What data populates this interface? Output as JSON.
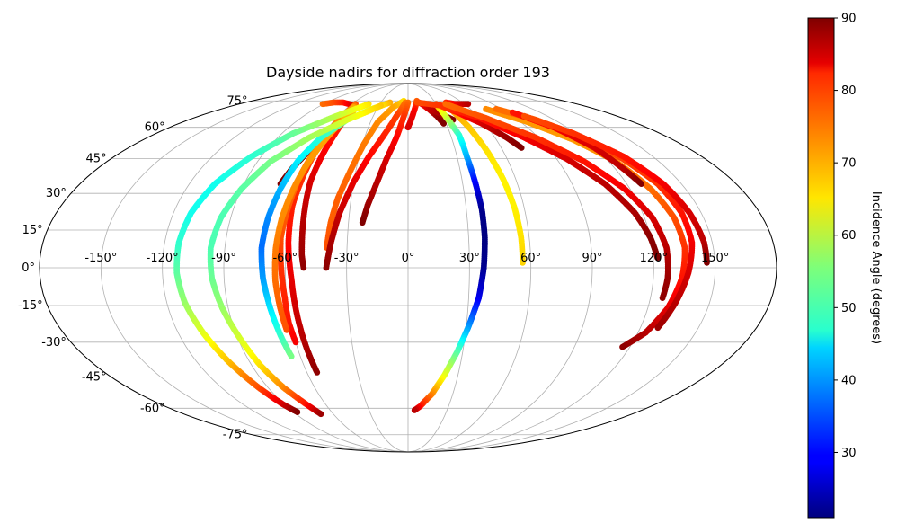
{
  "chart_data": {
    "type": "scatter",
    "projection": "mollweide",
    "title": "Dayside nadirs for diffraction order 193",
    "xlabel": "",
    "ylabel": "",
    "xlim": [
      -180,
      180
    ],
    "ylim": [
      -90,
      90
    ],
    "grid": true,
    "x_ticks": [
      -150,
      -120,
      -90,
      -60,
      -30,
      0,
      30,
      60,
      90,
      120,
      150
    ],
    "x_tick_labels": [
      "-150°",
      "-120°",
      "-90°",
      "-60°",
      "-30°",
      "0°",
      "30°",
      "60°",
      "90°",
      "120°",
      "150°"
    ],
    "y_ticks": [
      -75,
      -60,
      -45,
      -30,
      -15,
      0,
      15,
      30,
      45,
      60,
      75
    ],
    "y_tick_labels": [
      "-75°",
      "-60°",
      "-45°",
      "-30°",
      "-15°",
      "0°",
      "15°",
      "30°",
      "45°",
      "60°",
      "75°"
    ],
    "colorbar": {
      "label": "Incidence Angle (degrees)",
      "colormap": "jet",
      "range": [
        21,
        90
      ],
      "ticks": [
        30,
        40,
        50,
        60,
        70,
        80,
        90
      ],
      "tick_labels": [
        "30",
        "40",
        "50",
        "60",
        "70",
        "80",
        "90"
      ]
    },
    "tracks": [
      {
        "points": [
          [
            -91,
            73,
            74
          ],
          [
            -82,
            74,
            76
          ],
          [
            -72,
            74,
            79
          ],
          [
            -63,
            73,
            82
          ],
          [
            -57,
            72,
            84
          ],
          [
            -53,
            68,
            86
          ],
          [
            -55,
            62,
            88
          ],
          [
            -58,
            55,
            89
          ],
          [
            -63,
            48,
            90
          ],
          [
            -67,
            41,
            90
          ],
          [
            -70,
            34,
            90
          ]
        ]
      },
      {
        "points": [
          [
            -56,
            73,
            76
          ],
          [
            -52,
            66,
            78
          ],
          [
            -52,
            56,
            80
          ],
          [
            -53,
            46,
            82
          ],
          [
            -54,
            35,
            84
          ],
          [
            -53,
            20,
            86
          ],
          [
            -52,
            5,
            88
          ],
          [
            -51,
            0,
            89
          ]
        ]
      },
      {
        "points": [
          [
            -55,
            72,
            73
          ],
          [
            -57,
            62,
            75
          ],
          [
            -58,
            50,
            76
          ],
          [
            -59,
            38,
            78
          ],
          [
            -60,
            25,
            79
          ],
          [
            -59,
            10,
            81
          ],
          [
            -57,
            -5,
            83
          ],
          [
            -56,
            -20,
            85
          ],
          [
            -55,
            -33,
            87
          ],
          [
            -54,
            -43,
            89
          ]
        ]
      },
      {
        "points": [
          [
            -54,
            71,
            70
          ],
          [
            -57,
            60,
            72
          ],
          [
            -59,
            48,
            73
          ],
          [
            -61,
            36,
            74
          ],
          [
            -62,
            24,
            75
          ],
          [
            -63,
            12,
            76
          ],
          [
            -62,
            0,
            78
          ],
          [
            -61,
            -12,
            79
          ],
          [
            -61,
            -22,
            80
          ],
          [
            -60,
            -30,
            82
          ]
        ]
      },
      {
        "points": [
          [
            -51,
            69,
            68
          ],
          [
            -55,
            58,
            70
          ],
          [
            -59,
            45,
            71
          ],
          [
            -62,
            32,
            72
          ],
          [
            -64,
            20,
            72
          ],
          [
            -65,
            8,
            73
          ],
          [
            -65,
            -5,
            74
          ],
          [
            -64,
            -16,
            75
          ],
          [
            -63,
            -25,
            76
          ]
        ]
      },
      {
        "points": [
          [
            -20,
            74,
            70
          ],
          [
            -35,
            70,
            62
          ],
          [
            -50,
            64,
            56
          ],
          [
            -60,
            55,
            50
          ],
          [
            -66,
            44,
            46
          ],
          [
            -69,
            32,
            42
          ],
          [
            -71,
            20,
            39
          ],
          [
            -72,
            8,
            37
          ],
          [
            -71,
            -4,
            40
          ],
          [
            -69,
            -16,
            45
          ],
          [
            -67,
            -27,
            50
          ],
          [
            -65,
            -36,
            55
          ]
        ]
      },
      {
        "points": [
          [
            -28,
            72,
            68
          ],
          [
            -50,
            64,
            62
          ],
          [
            -68,
            55,
            58
          ],
          [
            -82,
            44,
            55
          ],
          [
            -90,
            32,
            53
          ],
          [
            -95,
            20,
            52
          ],
          [
            -97,
            8,
            52
          ],
          [
            -96,
            -4,
            54
          ],
          [
            -93,
            -16,
            57
          ],
          [
            -89,
            -28,
            61
          ],
          [
            -85,
            -40,
            66
          ],
          [
            -80,
            -50,
            72
          ],
          [
            -74,
            -58,
            80
          ],
          [
            -70,
            -63,
            88
          ]
        ]
      },
      {
        "points": [
          [
            -42,
            73,
            66
          ],
          [
            -62,
            66,
            60
          ],
          [
            -82,
            57,
            54
          ],
          [
            -96,
            46,
            50
          ],
          [
            -106,
            34,
            48
          ],
          [
            -111,
            22,
            48
          ],
          [
            -113,
            10,
            50
          ],
          [
            -113,
            -2,
            53
          ],
          [
            -111,
            -14,
            57
          ],
          [
            -107,
            -26,
            62
          ],
          [
            -102,
            -38,
            68
          ],
          [
            -96,
            -50,
            76
          ],
          [
            -91,
            -58,
            84
          ],
          [
            -87,
            -62,
            90
          ]
        ]
      },
      {
        "points": [
          [
            -5,
            75,
            66
          ],
          [
            -15,
            71,
            70
          ],
          [
            -24,
            63,
            72
          ],
          [
            -29,
            52,
            73
          ],
          [
            -33,
            40,
            74
          ],
          [
            -37,
            28,
            75
          ],
          [
            -39,
            18,
            75
          ],
          [
            -40,
            8,
            76
          ]
        ]
      },
      {
        "points": [
          [
            -3,
            74,
            73
          ],
          [
            -10,
            66,
            77
          ],
          [
            -17,
            56,
            79
          ],
          [
            -24,
            46,
            81
          ],
          [
            -30,
            35,
            83
          ],
          [
            -35,
            22,
            85
          ],
          [
            -38,
            10,
            87
          ],
          [
            -40,
            0,
            89
          ]
        ]
      },
      {
        "points": [
          [
            0,
            74,
            74
          ],
          [
            -4,
            65,
            78
          ],
          [
            -8,
            55,
            81
          ],
          [
            -13,
            45,
            84
          ],
          [
            -17,
            35,
            86
          ],
          [
            -21,
            25,
            88
          ],
          [
            -23,
            18,
            90
          ]
        ]
      },
      {
        "points": [
          [
            10,
            75,
            75
          ],
          [
            5,
            68,
            82
          ],
          [
            0,
            60,
            84
          ]
        ]
      },
      {
        "points": [
          [
            15,
            73,
            78
          ],
          [
            20,
            70,
            84
          ],
          [
            25,
            66,
            88
          ],
          [
            28,
            62,
            90
          ]
        ]
      },
      {
        "points": [
          [
            12,
            74,
            80
          ],
          [
            22,
            70,
            85
          ],
          [
            32,
            66,
            88
          ],
          [
            37,
            64,
            90
          ]
        ]
      },
      {
        "points": [
          [
            30,
            72,
            68
          ],
          [
            33,
            64,
            60
          ],
          [
            36,
            56,
            50
          ],
          [
            36,
            46,
            42
          ],
          [
            37,
            35,
            30
          ],
          [
            38,
            23,
            22
          ],
          [
            38,
            12,
            21
          ],
          [
            37,
            0,
            22
          ],
          [
            35,
            -12,
            28
          ],
          [
            31,
            -24,
            40
          ],
          [
            27,
            -34,
            52
          ],
          [
            22,
            -44,
            62
          ],
          [
            16,
            -53,
            72
          ],
          [
            9,
            -59,
            80
          ],
          [
            5,
            -61,
            86
          ]
        ]
      },
      {
        "points": [
          [
            40,
            72,
            72
          ],
          [
            46,
            60,
            68
          ],
          [
            50,
            48,
            66
          ],
          [
            53,
            36,
            65
          ],
          [
            55,
            24,
            65
          ],
          [
            56,
            12,
            66
          ],
          [
            56,
            2,
            67
          ]
        ]
      },
      {
        "points": [
          [
            42,
            74,
            79
          ],
          [
            50,
            73,
            81
          ],
          [
            57,
            73,
            84
          ],
          [
            64,
            73,
            86
          ]
        ]
      },
      {
        "points": [
          [
            30,
            73,
            76
          ],
          [
            45,
            68,
            80
          ],
          [
            58,
            62,
            84
          ],
          [
            68,
            55,
            88
          ],
          [
            73,
            50,
            90
          ]
        ]
      },
      {
        "points": [
          [
            10,
            74,
            76
          ],
          [
            35,
            72,
            78
          ],
          [
            60,
            65,
            80
          ],
          [
            80,
            55,
            82
          ],
          [
            96,
            45,
            84
          ],
          [
            108,
            34,
            86
          ],
          [
            116,
            22,
            87
          ],
          [
            120,
            12,
            89
          ],
          [
            122,
            4,
            90
          ]
        ]
      },
      {
        "points": [
          [
            40,
            73,
            74
          ],
          [
            65,
            65,
            76
          ],
          [
            88,
            55,
            78
          ],
          [
            105,
            44,
            80
          ],
          [
            117,
            32,
            82
          ],
          [
            124,
            20,
            84
          ],
          [
            127,
            8,
            86
          ],
          [
            127,
            -4,
            88
          ],
          [
            126,
            -12,
            89
          ]
        ]
      },
      {
        "points": [
          [
            75,
            70,
            72
          ],
          [
            95,
            63,
            71
          ],
          [
            112,
            54,
            71
          ],
          [
            124,
            44,
            72
          ],
          [
            131,
            32,
            74
          ],
          [
            135,
            20,
            76
          ],
          [
            136,
            8,
            78
          ],
          [
            134,
            -4,
            80
          ],
          [
            130,
            -16,
            83
          ],
          [
            124,
            -26,
            86
          ],
          [
            116,
            -32,
            89
          ]
        ]
      },
      {
        "points": [
          [
            85,
            70,
            74
          ],
          [
            105,
            64,
            74
          ],
          [
            120,
            55,
            75
          ],
          [
            130,
            45,
            77
          ],
          [
            137,
            34,
            78
          ],
          [
            140,
            22,
            80
          ],
          [
            140,
            10,
            82
          ],
          [
            137,
            -2,
            84
          ],
          [
            133,
            -14,
            86
          ],
          [
            129,
            -24,
            88
          ]
        ]
      },
      {
        "points": [
          [
            95,
            68,
            80
          ],
          [
            110,
            60,
            82
          ],
          [
            120,
            50,
            84
          ],
          [
            125,
            40,
            86
          ],
          [
            128,
            34,
            90
          ]
        ]
      },
      {
        "points": [
          [
            100,
            66,
            76
          ],
          [
            118,
            57,
            78
          ],
          [
            132,
            46,
            80
          ],
          [
            140,
            34,
            82
          ],
          [
            144,
            22,
            84
          ],
          [
            146,
            10,
            86
          ],
          [
            146,
            2,
            90
          ]
        ]
      }
    ]
  }
}
